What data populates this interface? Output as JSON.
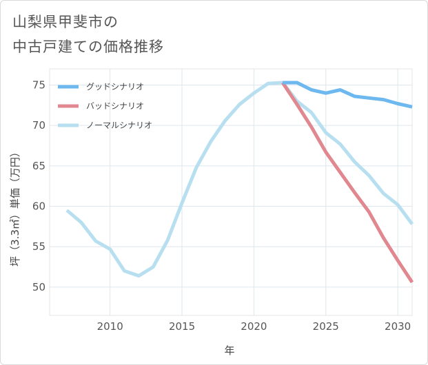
{
  "title": {
    "line1": "山梨県甲斐市の",
    "line2": "中古戸建ての価格推移"
  },
  "chart_data": {
    "type": "line",
    "xlabel": "年",
    "ylabel": "坪（3.3㎡）単価（万円）",
    "xlim": [
      2005.8,
      2031
    ],
    "ylim": [
      46.5,
      77
    ],
    "x_ticks": [
      2010,
      2015,
      2020,
      2025,
      2030
    ],
    "y_ticks": [
      50,
      55,
      60,
      65,
      70,
      75
    ],
    "grid": true,
    "legend_position": "top-left",
    "series": [
      {
        "name": "グッドシナリオ",
        "color": "#6cb8ef",
        "x": [
          2022,
          2023,
          2024,
          2025,
          2026,
          2027,
          2028,
          2029,
          2030,
          2031
        ],
        "y": [
          75.3,
          75.3,
          74.4,
          74.0,
          74.4,
          73.6,
          73.4,
          73.2,
          72.7,
          72.3
        ]
      },
      {
        "name": "バッドシナリオ",
        "color": "#e0878f",
        "x": [
          2022,
          2023,
          2024,
          2025,
          2026,
          2027,
          2028,
          2029,
          2030,
          2031
        ],
        "y": [
          75.3,
          72.6,
          69.8,
          66.7,
          64.2,
          61.7,
          59.3,
          56.1,
          53.3,
          50.6
        ]
      },
      {
        "name": "ノーマルシナリオ",
        "color": "#b7dff0",
        "x": [
          2007,
          2008,
          2009,
          2010,
          2011,
          2012,
          2013,
          2014,
          2015,
          2016,
          2017,
          2018,
          2019,
          2020,
          2021,
          2022,
          2023,
          2024,
          2025,
          2026,
          2027,
          2028,
          2029,
          2030,
          2031
        ],
        "y": [
          59.5,
          58.0,
          55.7,
          54.7,
          52.0,
          51.4,
          52.5,
          55.8,
          60.4,
          64.8,
          68.0,
          70.6,
          72.6,
          74.0,
          75.2,
          75.3,
          73.0,
          71.6,
          69.1,
          67.7,
          65.5,
          63.8,
          61.6,
          60.2,
          57.8
        ]
      }
    ]
  }
}
